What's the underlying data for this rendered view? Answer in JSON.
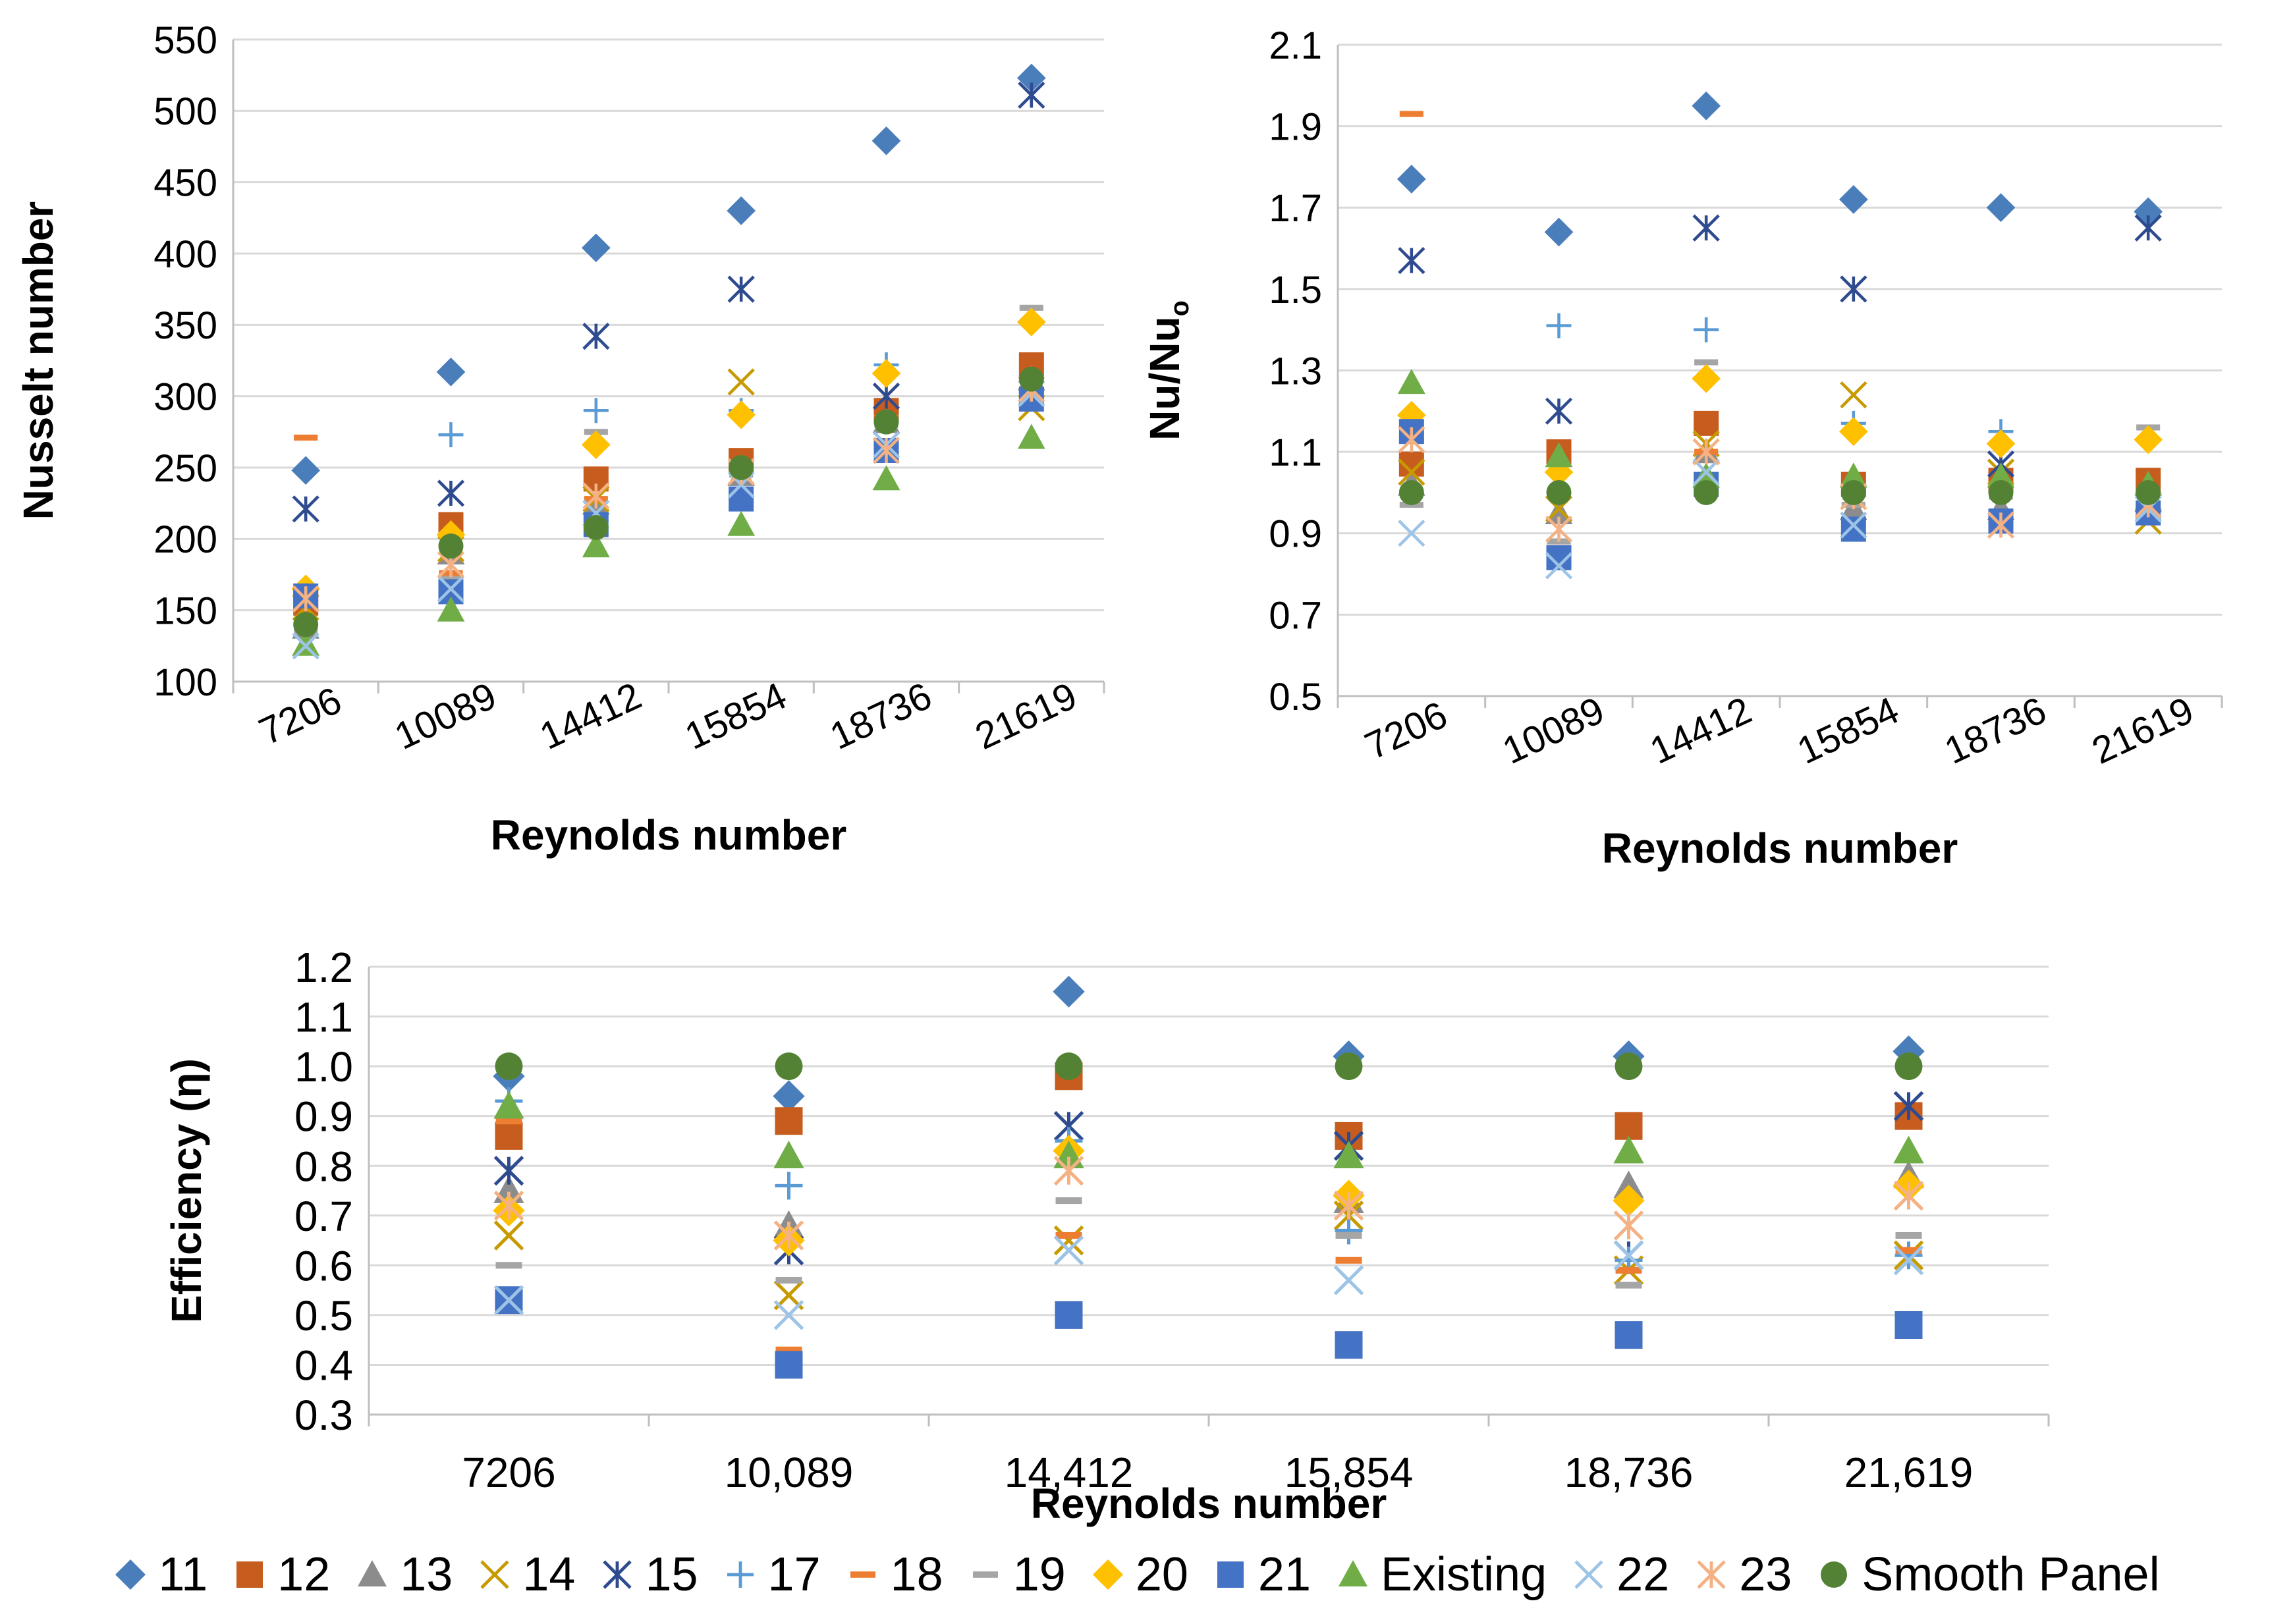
{
  "chart_data": [
    {
      "type": "scatter",
      "title": "",
      "xlabel": "Reynolds number",
      "ylabel": "Nusselt number",
      "categories": [
        "7206",
        "10089",
        "14412",
        "15854",
        "18736",
        "21619"
      ],
      "ylim": [
        100,
        550
      ],
      "yticks": [
        "100",
        "150",
        "200",
        "250",
        "300",
        "350",
        "400",
        "450",
        "500",
        "550"
      ],
      "series": [
        {
          "name": "11",
          "values": [
            248,
            317,
            404,
            430,
            479,
            523
          ]
        },
        {
          "name": "12",
          "values": [
            155,
            210,
            242,
            255,
            290,
            322
          ]
        },
        {
          "name": "13",
          "values": [
            138,
            190,
            225,
            245,
            282,
            312
          ]
        },
        {
          "name": "14",
          "values": [
            152,
            193,
            228,
            310,
            300,
            292
          ]
        },
        {
          "name": "15",
          "values": [
            221,
            232,
            342,
            375,
            300,
            511
          ]
        },
        {
          "name": "17",
          "values": [
            160,
            273,
            290,
            290,
            322,
            303
          ]
        },
        {
          "name": "18",
          "values": [
            271,
            176,
            228,
            252,
            285,
            300
          ]
        },
        {
          "name": "19",
          "values": [
            135,
            172,
            275,
            245,
            280,
            362
          ]
        },
        {
          "name": "20",
          "values": [
            165,
            203,
            266,
            287,
            316,
            352
          ]
        },
        {
          "name": "21",
          "values": [
            160,
            163,
            210,
            228,
            262,
            298
          ]
        },
        {
          "name": "Existing",
          "values": [
            126,
            150,
            195,
            210,
            242,
            271
          ]
        },
        {
          "name": "22",
          "values": [
            125,
            165,
            218,
            238,
            266,
            302
          ]
        },
        {
          "name": "23",
          "values": [
            158,
            182,
            230,
            247,
            262,
            305
          ]
        },
        {
          "name": "Smooth Panel",
          "values": [
            140,
            195,
            208,
            250,
            282,
            312
          ]
        }
      ]
    },
    {
      "type": "scatter",
      "title": "",
      "xlabel": "Reynolds number",
      "ylabel": "Nu/Nu",
      "ylabel_sub": "o",
      "categories": [
        "7206",
        "10089",
        "14412",
        "15854",
        "18736",
        "21619"
      ],
      "ylim": [
        0.5,
        2.1
      ],
      "yticks": [
        "0.5",
        "0.7",
        "0.9",
        "1.1",
        "1.3",
        "1.5",
        "1.7",
        "1.9",
        "2.1"
      ],
      "series": [
        {
          "name": "11",
          "values": [
            1.77,
            1.64,
            1.95,
            1.72,
            1.7,
            1.69
          ]
        },
        {
          "name": "12",
          "values": [
            1.07,
            1.1,
            1.17,
            1.02,
            1.03,
            1.03
          ]
        },
        {
          "name": "13",
          "values": [
            1.02,
            0.95,
            1.1,
            0.96,
            0.96,
            0.98
          ]
        },
        {
          "name": "14",
          "values": [
            1.05,
            0.96,
            1.12,
            1.24,
            1.05,
            0.93
          ]
        },
        {
          "name": "15",
          "values": [
            1.57,
            1.2,
            1.65,
            1.5,
            1.07,
            1.65
          ]
        },
        {
          "name": "17",
          "values": [
            1.13,
            1.41,
            1.4,
            1.17,
            1.15,
            0.96
          ]
        },
        {
          "name": "18",
          "values": [
            1.93,
            0.88,
            1.1,
            1.01,
            1.01,
            0.96
          ]
        },
        {
          "name": "19",
          "values": [
            0.97,
            0.88,
            1.32,
            0.97,
            0.99,
            1.16
          ]
        },
        {
          "name": "20",
          "values": [
            1.19,
            1.05,
            1.28,
            1.15,
            1.12,
            1.13
          ]
        },
        {
          "name": "21",
          "values": [
            1.15,
            0.84,
            1.02,
            0.91,
            0.93,
            0.95
          ]
        },
        {
          "name": "Existing",
          "values": [
            1.27,
            1.09,
            1.04,
            1.04,
            1.04,
            1.02
          ]
        },
        {
          "name": "22",
          "values": [
            0.9,
            0.82,
            1.05,
            0.92,
            0.92,
            0.96
          ]
        },
        {
          "name": "23",
          "values": [
            1.13,
            0.91,
            1.1,
            0.99,
            0.92,
            0.97
          ]
        },
        {
          "name": "Smooth Panel",
          "values": [
            1.0,
            1.0,
            1.0,
            1.0,
            1.0,
            1.0
          ]
        }
      ]
    },
    {
      "type": "scatter",
      "title": "",
      "xlabel": "Reynolds number",
      "ylabel": "Efficiency (η)",
      "categories": [
        "7206",
        "10,089",
        "14,412",
        "15,854",
        "18,736",
        "21,619"
      ],
      "ylim": [
        0.3,
        1.2
      ],
      "yticks": [
        "0.3",
        "0.4",
        "0.5",
        "0.6",
        "0.7",
        "0.8",
        "0.9",
        "1.0",
        "1.1",
        "1.2"
      ],
      "series": [
        {
          "name": "11",
          "values": [
            0.98,
            0.94,
            1.15,
            1.02,
            1.02,
            1.03
          ]
        },
        {
          "name": "12",
          "values": [
            0.86,
            0.89,
            0.98,
            0.86,
            0.88,
            0.9
          ]
        },
        {
          "name": "13",
          "values": [
            0.75,
            0.68,
            0.82,
            0.73,
            0.76,
            0.78
          ]
        },
        {
          "name": "14",
          "values": [
            0.66,
            0.54,
            0.65,
            0.7,
            0.59,
            0.62
          ]
        },
        {
          "name": "15",
          "values": [
            0.79,
            0.63,
            0.88,
            0.84,
            0.62,
            0.92
          ]
        },
        {
          "name": "17",
          "values": [
            0.93,
            0.76,
            0.85,
            0.67,
            0.61,
            0.62
          ]
        },
        {
          "name": "18",
          "values": [
            0.89,
            0.43,
            0.66,
            0.61,
            0.59,
            0.63
          ]
        },
        {
          "name": "19",
          "values": [
            0.6,
            0.57,
            0.73,
            0.66,
            0.56,
            0.66
          ]
        },
        {
          "name": "20",
          "values": [
            0.71,
            0.65,
            0.83,
            0.74,
            0.73,
            0.76
          ]
        },
        {
          "name": "21",
          "values": [
            0.53,
            0.4,
            0.5,
            0.44,
            0.46,
            0.48
          ]
        },
        {
          "name": "Existing",
          "values": [
            0.92,
            0.82,
            0.82,
            0.82,
            0.83,
            0.83
          ]
        },
        {
          "name": "22",
          "values": [
            0.53,
            0.5,
            0.63,
            0.57,
            0.62,
            0.61
          ]
        },
        {
          "name": "23",
          "values": [
            0.72,
            0.66,
            0.79,
            0.72,
            0.68,
            0.74
          ]
        },
        {
          "name": "Smooth Panel",
          "values": [
            1.0,
            1.0,
            1.0,
            1.0,
            1.0,
            1.0
          ]
        }
      ]
    }
  ],
  "legend": {
    "placement": "bottom",
    "items": [
      {
        "label": "11",
        "marker": "diamond",
        "color": "#4A7EBB"
      },
      {
        "label": "12",
        "marker": "square",
        "color": "#C65D1E"
      },
      {
        "label": "13",
        "marker": "triangle",
        "color": "#8C8C8C"
      },
      {
        "label": "14",
        "marker": "x",
        "color": "#C79A00"
      },
      {
        "label": "15",
        "marker": "star",
        "color": "#2F4B8F"
      },
      {
        "label": "17",
        "marker": "plus",
        "color": "#5B9BD5"
      },
      {
        "label": "18",
        "marker": "dash",
        "color": "#ED7D31"
      },
      {
        "label": "19",
        "marker": "dash",
        "color": "#A5A5A5"
      },
      {
        "label": "20",
        "marker": "diamond",
        "color": "#FFC000"
      },
      {
        "label": "21",
        "marker": "square",
        "color": "#4472C4"
      },
      {
        "label": "Existing",
        "marker": "triangle",
        "color": "#70AD47"
      },
      {
        "label": "22",
        "marker": "x",
        "color": "#9DC3E6"
      },
      {
        "label": "23",
        "marker": "star",
        "color": "#F4B183"
      },
      {
        "label": "Smooth Panel",
        "marker": "circle",
        "color": "#548235"
      }
    ]
  }
}
